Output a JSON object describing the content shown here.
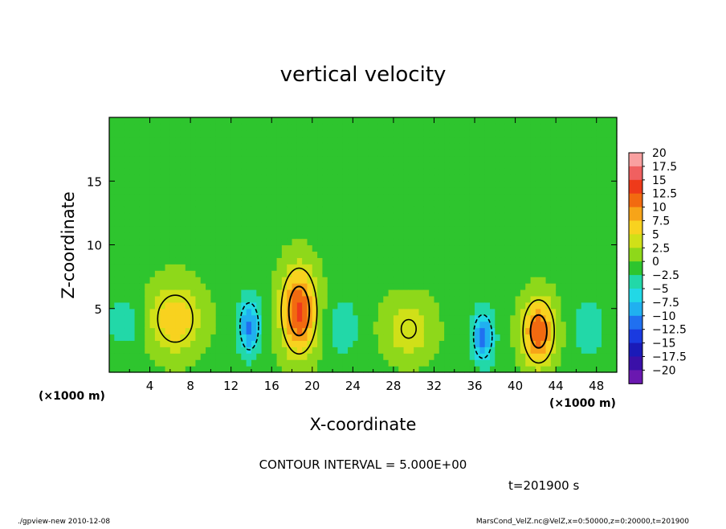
{
  "chart_data": {
    "type": "heatmap",
    "title": "vertical velocity",
    "xlabel": "X-coordinate",
    "ylabel": "Z-coordinate",
    "x_unit_label": "(×1000 m)",
    "y_unit_label": "(×1000 m)",
    "xlim": [
      0,
      50
    ],
    "ylim": [
      0,
      20
    ],
    "x_ticks": [
      4,
      8,
      12,
      16,
      20,
      24,
      28,
      32,
      36,
      40,
      44,
      48
    ],
    "x_tick_labels": [
      "4",
      "8",
      "12",
      "16",
      "20",
      "24",
      "28",
      "32",
      "36",
      "40",
      "44",
      "48"
    ],
    "y_ticks": [
      5,
      10,
      15
    ],
    "y_tick_labels": [
      "5",
      "10",
      "15"
    ],
    "colorbar": {
      "levels": [
        20,
        17.5,
        15,
        12.5,
        10,
        7.5,
        5,
        2.5,
        0,
        -2.5,
        -5,
        -7.5,
        -10,
        -12.5,
        -15,
        -17.5,
        -20
      ],
      "labels": [
        "20",
        "17.5",
        "15",
        "12.5",
        "10",
        "7.5",
        "5",
        "2.5",
        "0",
        "−2.5",
        "−5",
        "−7.5",
        "−10",
        "−12.5",
        "−15",
        "−17.5",
        "−20"
      ],
      "colors": [
        "#f9a0a0",
        "#f06060",
        "#ee3a1a",
        "#f26a10",
        "#f7a418",
        "#f8d21f",
        "#d0e018",
        "#8ed81a",
        "#2ec52e",
        "#22d8a8",
        "#22d8e6",
        "#20b0f0",
        "#2070f0",
        "#1a3ae0",
        "#1a1ab8",
        "#3a10a8",
        "#6a18b0"
      ]
    },
    "background_value": 0.5,
    "features": [
      {
        "type": "updraft",
        "x_center": 6.5,
        "z_center": 4.2,
        "peak": 8,
        "x_halfwidth": 3.2,
        "z_halfwidth": 3.4
      },
      {
        "type": "updraft",
        "x_center": 18.7,
        "z_center": 4.8,
        "peak": 14,
        "x_halfwidth": 2.2,
        "z_halfwidth": 4.2
      },
      {
        "type": "updraft",
        "x_center": 29.5,
        "z_center": 3.4,
        "peak": 5.5,
        "x_halfwidth": 3.0,
        "z_halfwidth": 3.0
      },
      {
        "type": "updraft",
        "x_center": 42.3,
        "z_center": 3.2,
        "peak": 13,
        "x_halfwidth": 2.0,
        "z_halfwidth": 3.2
      },
      {
        "type": "downdraft",
        "x_center": 13.8,
        "z_center": 3.6,
        "peak": -10,
        "x_halfwidth": 1.4,
        "z_halfwidth": 2.8
      },
      {
        "type": "downdraft",
        "x_center": 36.8,
        "z_center": 2.8,
        "peak": -10,
        "x_halfwidth": 1.4,
        "z_halfwidth": 2.6
      },
      {
        "type": "downdraft",
        "x_center": 1.5,
        "z_center": 4.0,
        "peak": -4,
        "x_halfwidth": 2.0,
        "z_halfwidth": 2.5
      },
      {
        "type": "downdraft",
        "x_center": 23.0,
        "z_center": 3.6,
        "peak": -4,
        "x_halfwidth": 2.0,
        "z_halfwidth": 2.8
      },
      {
        "type": "downdraft",
        "x_center": 47.3,
        "z_center": 3.6,
        "peak": -4,
        "x_halfwidth": 2.0,
        "z_halfwidth": 2.8
      }
    ],
    "contour_interval": "CONTOUR INTERVAL = 5.000E+00",
    "time_label": "t=201900 s"
  },
  "footer": {
    "left": "./gpview-new   2010-12-08",
    "right": "MarsCond_VelZ.nc@VelZ,x=0:50000,z=0:20000,t=201900"
  }
}
